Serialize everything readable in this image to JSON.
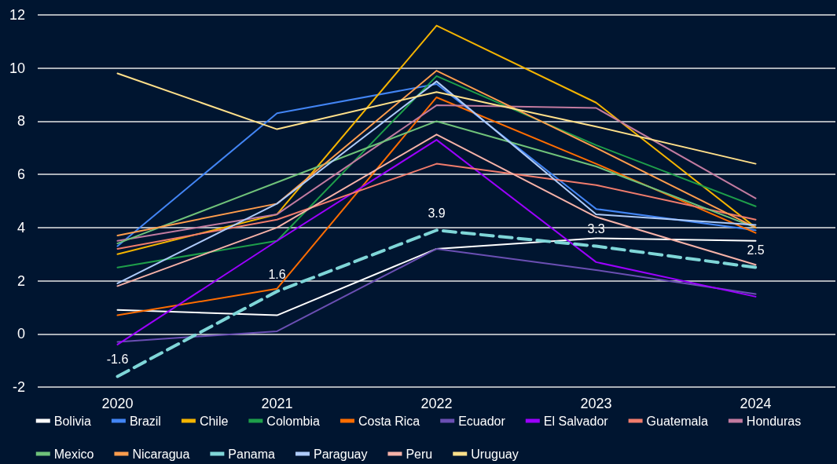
{
  "chart_data": {
    "type": "line",
    "categories": [
      "2020",
      "2021",
      "2022",
      "2023",
      "2024"
    ],
    "ylim": [
      -2,
      12
    ],
    "yticks": [
      -2,
      0,
      2,
      4,
      6,
      8,
      10,
      12
    ],
    "grid": "y",
    "legend": "bottom",
    "marker": "none",
    "series": [
      {
        "name": "Bolivia",
        "color": "#ffffff",
        "values": [
          0.9,
          0.7,
          3.2,
          3.6,
          3.5
        ]
      },
      {
        "name": "Brazil",
        "color": "#4285f4",
        "values": [
          3.3,
          8.3,
          9.4,
          4.7,
          3.9
        ]
      },
      {
        "name": "Chile",
        "color": "#f4b400",
        "values": [
          3.0,
          4.5,
          11.6,
          8.7,
          4.0
        ]
      },
      {
        "name": "Colombia",
        "color": "#1e9e4a",
        "values": [
          2.5,
          3.5,
          9.7,
          7.1,
          4.8
        ]
      },
      {
        "name": "Costa Rica",
        "color": "#ff6d00",
        "values": [
          0.7,
          1.7,
          8.9,
          6.4,
          3.8
        ]
      },
      {
        "name": "Ecuador",
        "color": "#6a4fb3",
        "values": [
          -0.3,
          0.1,
          3.2,
          2.4,
          1.5
        ]
      },
      {
        "name": "El Salvador",
        "color": "#9b00ff",
        "values": [
          -0.4,
          3.5,
          7.3,
          2.7,
          1.4
        ]
      },
      {
        "name": "Guatemala",
        "color": "#f07c6c",
        "values": [
          3.2,
          4.3,
          6.4,
          5.6,
          4.3
        ]
      },
      {
        "name": "Honduras",
        "color": "#c27ba0",
        "values": [
          3.5,
          4.5,
          8.6,
          8.5,
          5.1
        ]
      },
      {
        "name": "Mexico",
        "color": "#6fc27a",
        "values": [
          3.4,
          5.7,
          8.0,
          6.3,
          4.0
        ]
      },
      {
        "name": "Nicaragua",
        "color": "#ff9d4d",
        "values": [
          3.7,
          4.9,
          9.9,
          7.0,
          4.0
        ]
      },
      {
        "name": "Panama",
        "color": "#7fd6d8",
        "line_style": "dashed",
        "values": [
          -1.6,
          1.6,
          3.9,
          3.3,
          2.5
        ],
        "value_labels": [
          "-1.6",
          "1.6",
          "3.9",
          "3.3",
          "2.5"
        ]
      },
      {
        "name": "Paraguay",
        "color": "#aecbfa",
        "values": [
          1.9,
          4.9,
          9.5,
          4.5,
          4.1
        ]
      },
      {
        "name": "Peru",
        "color": "#f6b2a8",
        "values": [
          1.8,
          4.0,
          7.5,
          4.4,
          2.6
        ]
      },
      {
        "name": "Uruguay",
        "color": "#ffe08a",
        "values": [
          9.8,
          7.7,
          9.1,
          7.8,
          6.4
        ]
      }
    ]
  }
}
